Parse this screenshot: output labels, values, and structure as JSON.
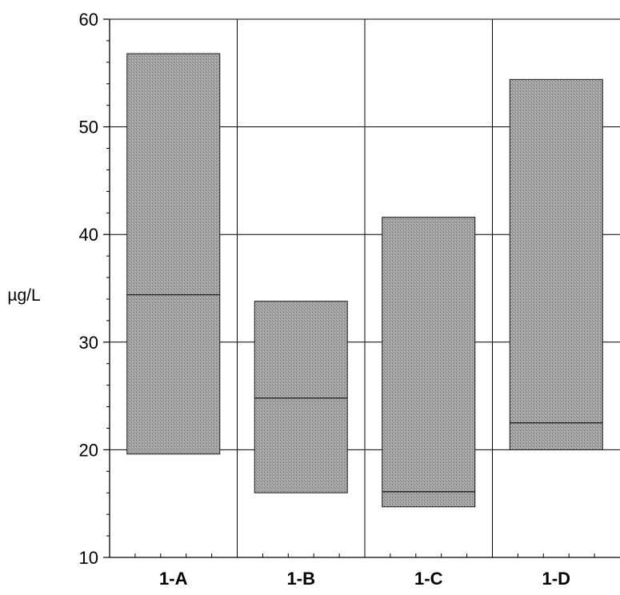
{
  "chart_data": {
    "type": "bar",
    "subtype": "floating-range-with-median",
    "title": "",
    "xlabel": "",
    "ylabel": "µg/L",
    "ylim": [
      10,
      60
    ],
    "yticks": [
      10,
      20,
      30,
      40,
      50,
      60
    ],
    "grid": true,
    "categories": [
      "1-A",
      "1-B",
      "1-C",
      "1-D"
    ],
    "series": [
      {
        "low": 19.6,
        "high": 56.8,
        "median": 34.4
      },
      {
        "low": 16.0,
        "high": 33.8,
        "median": 24.8
      },
      {
        "low": 14.7,
        "high": 41.6,
        "median": 16.1
      },
      {
        "low": 20.0,
        "high": 54.4,
        "median": 22.5
      }
    ],
    "colors": {
      "bar_fill": "#a0a0a0",
      "bar_stroke": "#1a1a1a",
      "median_line": "#111111",
      "grid": "#000000",
      "axis": "#000000"
    }
  }
}
